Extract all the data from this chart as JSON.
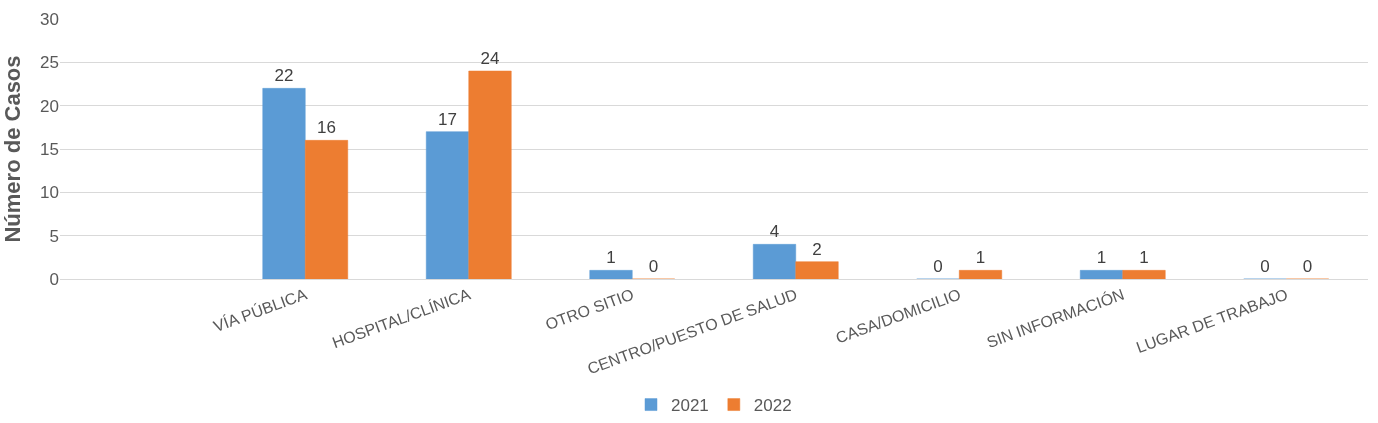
{
  "chart_data": {
    "type": "bar",
    "ylabel": "Número de Casos",
    "categories": [
      null,
      "VÍA PÚBLICA",
      "HOSPITAL/CLÍNICA",
      "OTRO SITIO",
      "CENTRO/PUESTO DE SALUD",
      "CASA/DOMICILIO",
      "SIN INFORMACIÓN",
      "LUGAR DE TRABAJO"
    ],
    "series": [
      {
        "name": "2021",
        "color": "#5b9bd5",
        "values": [
          null,
          22,
          17,
          1,
          4,
          0,
          1,
          0
        ]
      },
      {
        "name": "2022",
        "color": "#ed7d31",
        "values": [
          null,
          16,
          24,
          0,
          2,
          1,
          1,
          0
        ]
      }
    ],
    "ylim": [
      0,
      30
    ],
    "yticks": [
      0,
      5,
      10,
      15,
      20,
      25,
      30
    ],
    "grid": "y",
    "legend": "bottom",
    "data_labels": true
  }
}
